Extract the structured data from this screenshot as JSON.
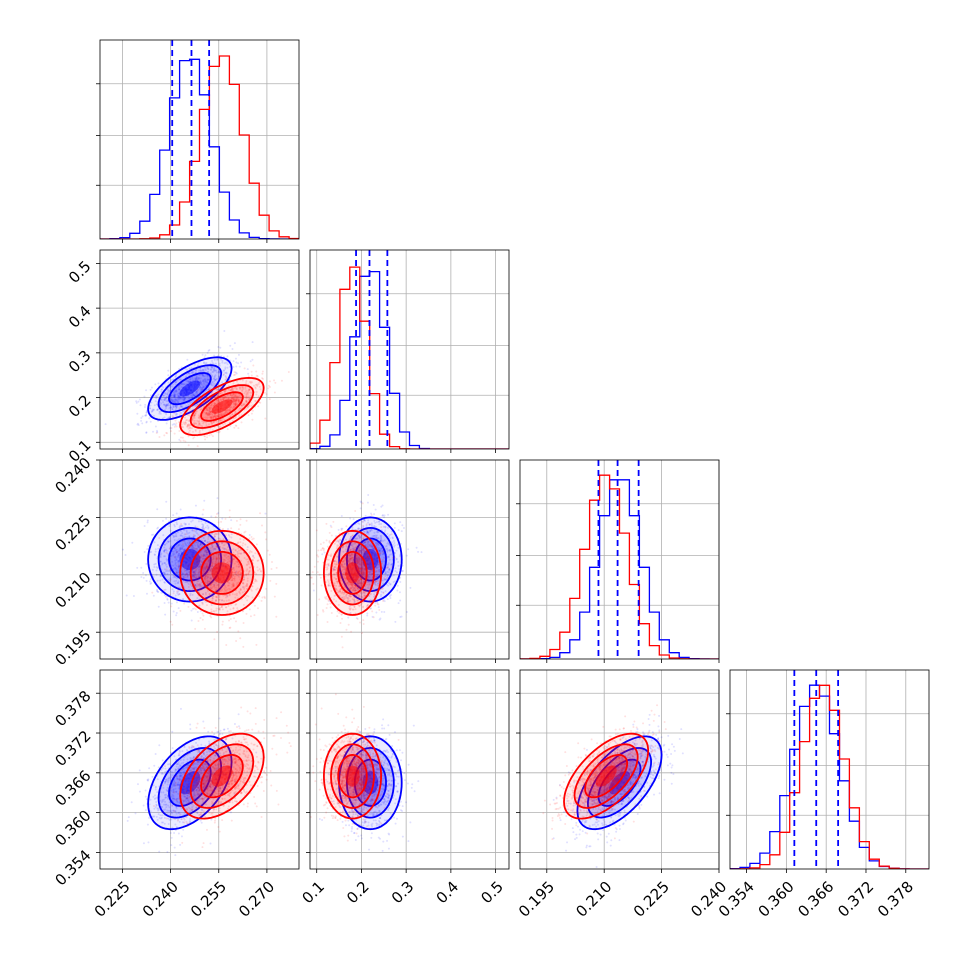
{
  "chart_data": {
    "type": "corner",
    "parameters": [
      {
        "ticks": [
          0.225,
          0.24,
          0.255,
          0.27
        ],
        "tick_labels": [
          "0.225",
          "0.240",
          "0.255",
          "0.270"
        ],
        "range": [
          0.218,
          0.28
        ]
      },
      {
        "ticks": [
          0.1,
          0.2,
          0.3,
          0.4,
          0.5
        ],
        "tick_labels": [
          "0.1",
          "0.2",
          "0.3",
          "0.4",
          "0.5"
        ],
        "range": [
          0.085,
          0.53
        ]
      },
      {
        "ticks": [
          0.195,
          0.21,
          0.225,
          0.24
        ],
        "tick_labels": [
          "0.195",
          "0.210",
          "0.225",
          "0.240"
        ],
        "range": [
          0.188,
          0.24
        ]
      },
      {
        "ticks": [
          0.354,
          0.36,
          0.366,
          0.372,
          0.378
        ],
        "tick_labels": [
          "0.354",
          "0.360",
          "0.366",
          "0.372",
          "0.378"
        ],
        "range": [
          0.3515,
          0.3815
        ]
      }
    ],
    "series": [
      {
        "color": "#0000ff",
        "means": [
          0.246,
          0.22,
          0.214,
          0.3645
        ],
        "sigmas": [
          0.0065,
          0.035,
          0.0055,
          0.0035
        ],
        "correlations": {
          "0-1": 0.65,
          "0-2": 0.0,
          "0-3": 0.45,
          "1-2": 0.0,
          "1-3": 0.0,
          "2-3": 0.6
        }
      },
      {
        "color": "#ff0000",
        "means": [
          0.256,
          0.18,
          0.2105,
          0.3655
        ],
        "sigmas": [
          0.0065,
          0.032,
          0.0055,
          0.0032
        ],
        "correlations": {
          "0-1": 0.65,
          "0-2": 0.0,
          "0-3": 0.45,
          "1-2": 0.0,
          "1-3": 0.0,
          "2-3": 0.6
        }
      }
    ],
    "quantile_lines": {
      "color": "#0000ff",
      "style": "dashed",
      "values": [
        [
          0.2405,
          0.2465,
          0.252
        ],
        [
          0.188,
          0.218,
          0.258
        ],
        [
          0.2085,
          0.2135,
          0.219
        ],
        [
          0.3612,
          0.3645,
          0.3678
        ]
      ]
    },
    "histogram_bins": 20,
    "grid": true
  }
}
